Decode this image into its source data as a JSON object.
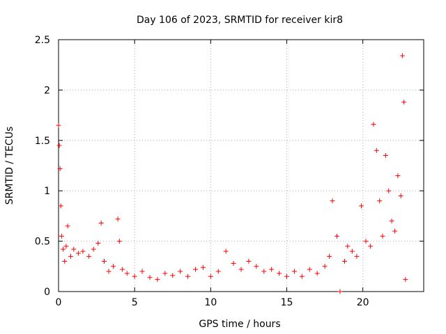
{
  "chart_data": {
    "type": "scatter",
    "title": "Day 106 of 2023, SRMTID for receiver kir8",
    "xlabel": "GPS time / hours",
    "ylabel": "SRMTID / TECUs",
    "xlim": [
      0,
      24
    ],
    "ylim": [
      0,
      2.5
    ],
    "x_ticks": [
      "0",
      "5",
      "10",
      "15",
      "20"
    ],
    "y_ticks": [
      "0",
      "0.5",
      "1",
      "1.5",
      "2",
      "2.5"
    ],
    "grid": true,
    "marker": "+",
    "series": [
      {
        "name": "SRMTID",
        "color": "#ff0000",
        "x": [
          0.0,
          0.05,
          0.1,
          0.15,
          0.2,
          0.3,
          0.4,
          0.5,
          0.6,
          0.8,
          1.0,
          1.3,
          1.6,
          2.0,
          2.3,
          2.6,
          2.8,
          3.0,
          3.3,
          3.6,
          3.9,
          4.0,
          4.2,
          4.5,
          5.0,
          5.5,
          6.0,
          6.5,
          7.0,
          7.5,
          8.0,
          8.5,
          9.0,
          9.5,
          10.0,
          10.5,
          11.0,
          11.5,
          12.0,
          12.5,
          13.0,
          13.5,
          14.0,
          14.5,
          15.0,
          15.5,
          16.0,
          16.5,
          17.0,
          17.5,
          17.8,
          18.0,
          18.3,
          18.5,
          18.8,
          19.0,
          19.3,
          19.6,
          19.9,
          20.2,
          20.5,
          20.7,
          20.9,
          21.1,
          21.3,
          21.5,
          21.7,
          21.9,
          22.1,
          22.3,
          22.5,
          22.6,
          22.7,
          22.8
        ],
        "y": [
          1.65,
          1.45,
          1.22,
          0.85,
          0.55,
          0.42,
          0.3,
          0.45,
          0.65,
          0.35,
          0.42,
          0.38,
          0.4,
          0.35,
          0.42,
          0.48,
          0.68,
          0.3,
          0.2,
          0.25,
          0.72,
          0.5,
          0.22,
          0.18,
          0.15,
          0.2,
          0.14,
          0.12,
          0.18,
          0.16,
          0.2,
          0.15,
          0.22,
          0.24,
          0.15,
          0.2,
          0.4,
          0.28,
          0.22,
          0.3,
          0.25,
          0.2,
          0.22,
          0.18,
          0.15,
          0.2,
          0.15,
          0.22,
          0.18,
          0.25,
          0.35,
          0.9,
          0.55,
          0.0,
          0.3,
          0.45,
          0.4,
          0.35,
          0.85,
          0.5,
          0.45,
          1.66,
          1.4,
          0.9,
          0.55,
          1.35,
          1.0,
          0.7,
          0.6,
          1.15,
          0.95,
          2.34,
          1.88,
          0.12
        ]
      }
    ]
  }
}
